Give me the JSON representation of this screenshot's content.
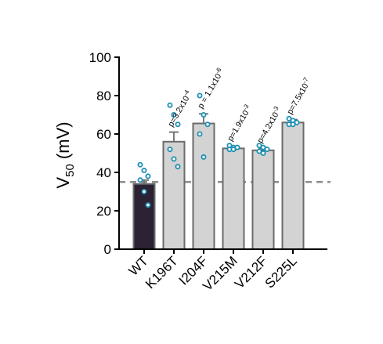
{
  "chart_data": {
    "type": "bar",
    "ylabel_main": "V",
    "ylabel_sub": "50",
    "ylabel_unit": " (mV)",
    "ylim": [
      0,
      100
    ],
    "yticks": [
      "0",
      "20",
      "40",
      "60",
      "80",
      "100"
    ],
    "categories": [
      "WT",
      "K196T",
      "I204F",
      "V215M",
      "V212F",
      "S225L"
    ],
    "values": [
      34,
      56,
      65.5,
      52.5,
      51.5,
      66
    ],
    "errors": [
      2,
      5,
      5,
      1,
      1,
      1.5
    ],
    "points": [
      [
        44,
        41,
        38,
        36,
        30,
        23
      ],
      [
        75,
        70,
        65,
        52,
        47,
        43
      ],
      [
        80,
        70,
        65,
        60,
        48
      ],
      [
        54,
        53,
        53,
        52,
        52
      ],
      [
        54,
        53,
        52,
        51,
        50
      ],
      [
        68,
        67,
        66,
        65,
        65
      ]
    ],
    "annotations": [
      "",
      "p=3.2x10^-4",
      "p = 1.1x10^-6",
      "p=1.9x10^-3",
      "p=4.2x10^-3",
      "p=7.5x10^-7"
    ],
    "reference_line": 35,
    "colors": {
      "wt_bar": "#2b2233",
      "mutant_bar": "#d3d3d3",
      "bar_edge": "#6b6b6b",
      "points": "#1e90b4",
      "reference_line": "#8c8c8c"
    }
  }
}
